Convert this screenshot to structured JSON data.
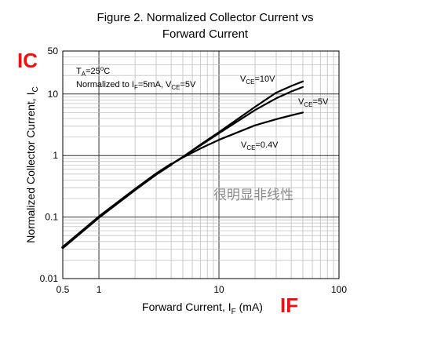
{
  "figure": {
    "title_line1": "Figure 2. Normalized Collector Current vs",
    "title_line2": "Forward Current"
  },
  "annotations": {
    "red_y": "IC",
    "red_x": "IF",
    "watermark": "很明显非线性"
  },
  "chart_data": {
    "type": "line",
    "xscale": "log",
    "yscale": "log",
    "xlim": [
      0.5,
      100
    ],
    "ylim": [
      0.01,
      50
    ],
    "xticks": [
      "0.5",
      "1",
      "10",
      "100"
    ],
    "yticks": [
      "0.01",
      "0.1",
      "1",
      "10",
      "50"
    ],
    "xlabel": {
      "main": "Forward Current, I",
      "sub": "F",
      "unit": " (mA)"
    },
    "ylabel": {
      "main": "Normalized Collector Current, I",
      "sub": "C"
    },
    "conditions": {
      "line1": {
        "pre": "T",
        "sub": "A",
        "mid": "=25",
        "sup": "o",
        "post": "C"
      },
      "line2": {
        "a": "Normalized to I",
        "sub1": "F",
        "b": "=5mA, V",
        "sub2": "CE",
        "c": "=5V"
      }
    },
    "grid": true,
    "series": [
      {
        "name": "VCE=10V",
        "label": {
          "v": "V",
          "sub": "CE",
          "val": "=10V"
        },
        "x": [
          0.5,
          1,
          2,
          3,
          4,
          5,
          7,
          10,
          20,
          30,
          40,
          50
        ],
        "y": [
          0.032,
          0.1,
          0.28,
          0.5,
          0.72,
          0.95,
          1.5,
          2.4,
          6.2,
          10.5,
          13.5,
          16.0
        ]
      },
      {
        "name": "VCE=5V",
        "label": {
          "v": "V",
          "sub": "CE",
          "val": "=5V"
        },
        "x": [
          0.5,
          1,
          2,
          3,
          4,
          5,
          7,
          10,
          20,
          30,
          40,
          50
        ],
        "y": [
          0.032,
          0.1,
          0.28,
          0.5,
          0.72,
          0.95,
          1.45,
          2.3,
          5.5,
          8.5,
          11.0,
          13.0
        ]
      },
      {
        "name": "VCE=0.4V",
        "label": {
          "v": "V",
          "sub": "CE",
          "val": "=0.4V"
        },
        "x": [
          0.5,
          1,
          2,
          3,
          4,
          5,
          7,
          10,
          20,
          30,
          40,
          50
        ],
        "y": [
          0.032,
          0.1,
          0.28,
          0.5,
          0.72,
          0.93,
          1.3,
          1.8,
          3.1,
          3.9,
          4.5,
          5.0
        ]
      }
    ]
  }
}
